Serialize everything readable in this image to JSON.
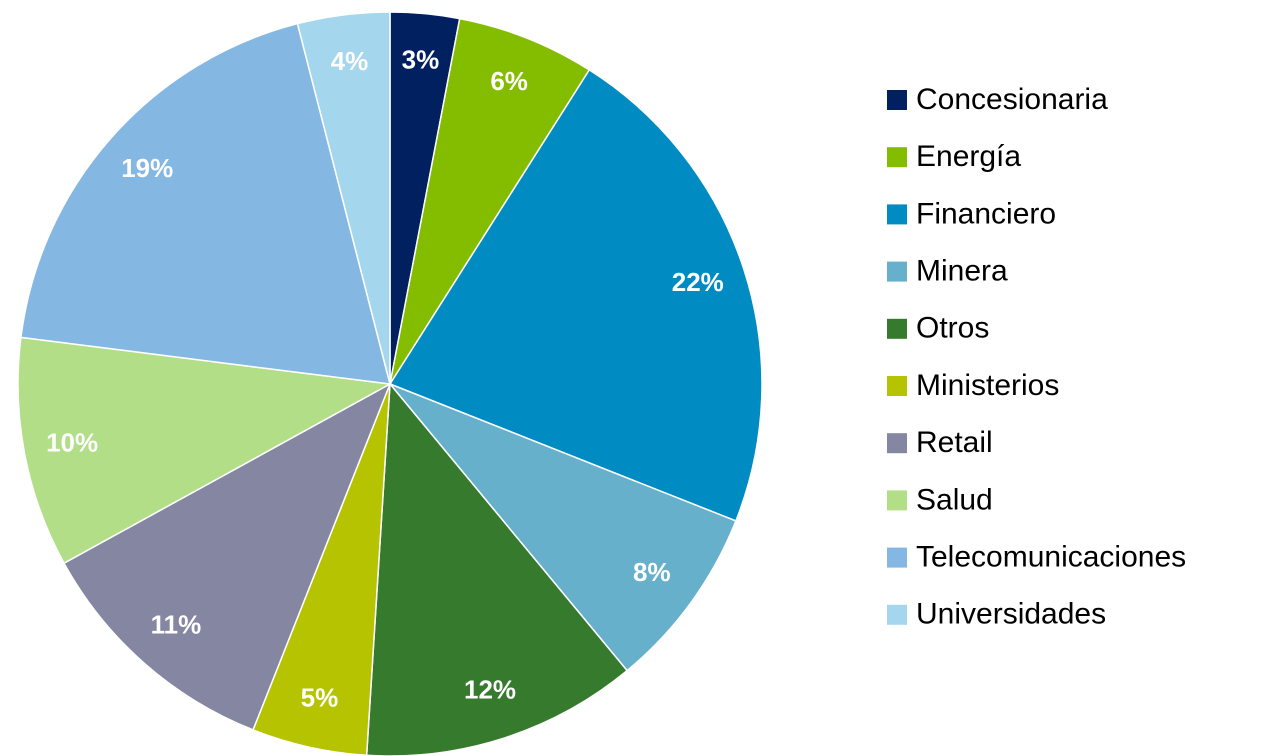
{
  "chart_data": {
    "type": "pie",
    "categories": [
      "Concesionaria",
      "Energía",
      "Financiero",
      "Minera",
      "Otros",
      "Ministerios",
      "Retail",
      "Salud",
      "Telecomunicaciones",
      "Universidades"
    ],
    "values": [
      3,
      6,
      22,
      8,
      12,
      5,
      11,
      10,
      19,
      4
    ],
    "value_labels": [
      "3%",
      "6%",
      "22%",
      "8%",
      "12%",
      "5%",
      "11%",
      "10%",
      "19%",
      "4%"
    ],
    "colors": [
      "#002060",
      "#84bd00",
      "#008cc2",
      "#67b0cc",
      "#367a2e",
      "#b5c300",
      "#8486a2",
      "#b2de87",
      "#84b8e2",
      "#a4d6ee"
    ],
    "legend": "right"
  }
}
